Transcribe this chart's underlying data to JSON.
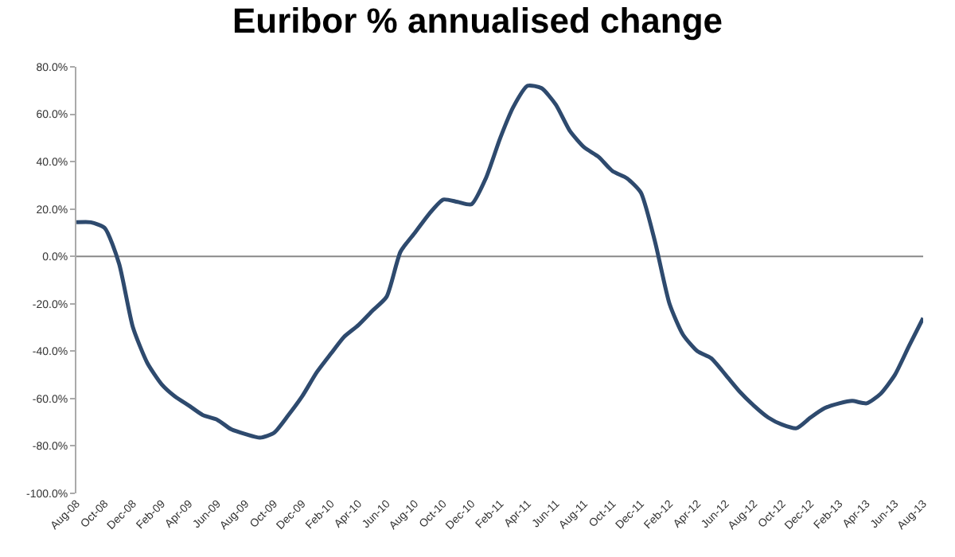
{
  "chart_data": {
    "type": "line",
    "title": "Euribor % annualised change",
    "x": [
      "2008-08",
      "2008-09",
      "2008-10",
      "2008-11",
      "2008-12",
      "2009-01",
      "2009-02",
      "2009-03",
      "2009-04",
      "2009-05",
      "2009-06",
      "2009-07",
      "2009-08",
      "2009-09",
      "2009-10",
      "2009-11",
      "2009-12",
      "2010-01",
      "2010-02",
      "2010-03",
      "2010-04",
      "2010-05",
      "2010-06",
      "2010-07",
      "2010-08",
      "2010-09",
      "2010-10",
      "2010-11",
      "2010-12",
      "2011-01",
      "2011-02",
      "2011-03",
      "2011-04",
      "2011-05",
      "2011-06",
      "2011-07",
      "2011-08",
      "2011-09",
      "2011-10",
      "2011-11",
      "2011-12",
      "2012-01",
      "2012-02",
      "2012-03",
      "2012-04",
      "2012-05",
      "2012-06",
      "2012-07",
      "2012-08",
      "2012-09",
      "2012-10",
      "2012-11",
      "2012-12",
      "2013-01",
      "2013-02",
      "2013-03",
      "2013-04",
      "2013-05",
      "2013-06",
      "2013-07",
      "2013-08"
    ],
    "series": [
      {
        "color": "#2e4a6e",
        "values": [
          14.4,
          14.4,
          12,
          -3,
          -30,
          -45,
          -54,
          -59,
          -63,
          -67,
          -69,
          -73,
          -75,
          -76.5,
          -74.5,
          -67,
          -59,
          -49,
          -41,
          -34,
          -29,
          -23,
          -17,
          2,
          10,
          18,
          24,
          23,
          22,
          33,
          50,
          63,
          72,
          71,
          64,
          53,
          46,
          42,
          36,
          33,
          27,
          6,
          -20,
          -33,
          -40,
          -43,
          -50,
          -57,
          -63,
          -68,
          -71,
          -72.5,
          -68,
          -64,
          -62,
          -61,
          -62,
          -58,
          -50,
          -38,
          -26
        ]
      }
    ],
    "xlim": [
      "2008-08",
      "2013-08"
    ],
    "xticks": [
      {
        "value": "2008-08",
        "label": "Aug-08"
      },
      {
        "value": "2008-10",
        "label": "Oct-08"
      },
      {
        "value": "2008-12",
        "label": "Dec-08"
      },
      {
        "value": "2009-02",
        "label": "Feb-09"
      },
      {
        "value": "2009-04",
        "label": "Apr-09"
      },
      {
        "value": "2009-06",
        "label": "Jun-09"
      },
      {
        "value": "2009-08",
        "label": "Aug-09"
      },
      {
        "value": "2009-10",
        "label": "Oct-09"
      },
      {
        "value": "2009-12",
        "label": "Dec-09"
      },
      {
        "value": "2010-02",
        "label": "Feb-10"
      },
      {
        "value": "2010-04",
        "label": "Apr-10"
      },
      {
        "value": "2010-06",
        "label": "Jun-10"
      },
      {
        "value": "2010-08",
        "label": "Aug-10"
      },
      {
        "value": "2010-10",
        "label": "Oct-10"
      },
      {
        "value": "2010-12",
        "label": "Dec-10"
      },
      {
        "value": "2011-02",
        "label": "Feb-11"
      },
      {
        "value": "2011-04",
        "label": "Apr-11"
      },
      {
        "value": "2011-06",
        "label": "Jun-11"
      },
      {
        "value": "2011-08",
        "label": "Aug-11"
      },
      {
        "value": "2011-10",
        "label": "Oct-11"
      },
      {
        "value": "2011-12",
        "label": "Dec-11"
      },
      {
        "value": "2012-02",
        "label": "Feb-12"
      },
      {
        "value": "2012-04",
        "label": "Apr-12"
      },
      {
        "value": "2012-06",
        "label": "Jun-12"
      },
      {
        "value": "2012-08",
        "label": "Aug-12"
      },
      {
        "value": "2012-10",
        "label": "Oct-12"
      },
      {
        "value": "2012-12",
        "label": "Dec-12"
      },
      {
        "value": "2013-02",
        "label": "Feb-13"
      },
      {
        "value": "2013-04",
        "label": "Apr-13"
      },
      {
        "value": "2013-06",
        "label": "Jun-13"
      },
      {
        "value": "2013-08",
        "label": "Aug-13"
      }
    ],
    "ylim": [
      -100,
      80
    ],
    "yticks": [
      {
        "value": 80,
        "label": "80.0%"
      },
      {
        "value": 60,
        "label": "60.0%"
      },
      {
        "value": 40,
        "label": "40.0%"
      },
      {
        "value": 20,
        "label": "20.0%"
      },
      {
        "value": 0,
        "label": "0.0%"
      },
      {
        "value": -20,
        "label": "-20.0%"
      },
      {
        "value": -40,
        "label": "-40.0%"
      },
      {
        "value": -60,
        "label": "-60.0%"
      },
      {
        "value": -80,
        "label": "-80.0%"
      },
      {
        "value": -100,
        "label": "-100.0%"
      }
    ],
    "ref_lines": [
      {
        "axis": "y",
        "value": 0,
        "color": "#888888"
      }
    ],
    "grid": false,
    "marker": "none",
    "line_style": "solid"
  }
}
